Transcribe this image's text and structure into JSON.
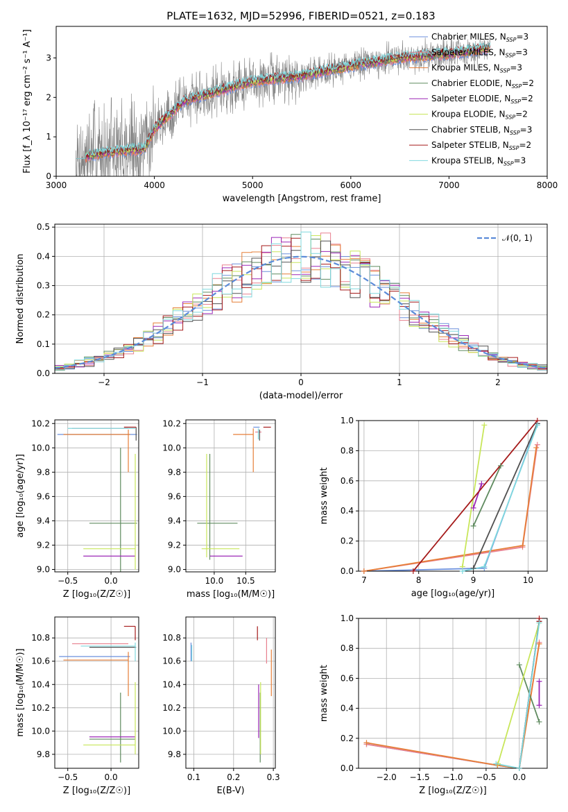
{
  "figure_title": "PLATE=1632, MJD=52996, FIBERID=0521, z=0.183",
  "colors": {
    "Chabrier MILES": "#6b8fdc",
    "Salpeter MILES": "#e8808f",
    "Kroupa MILES": "#e67e37",
    "Chabrier ELODIE": "#5e8a5e",
    "Salpeter ELODIE": "#9b26b6",
    "Kroupa ELODIE": "#c8e65a",
    "Chabrier STELIB": "#505050",
    "Salpeter STELIB": "#a51a1a",
    "Kroupa STELIB": "#7fd8de",
    "data": "#808080",
    "gaussian": "#5b8bd8"
  },
  "chart_data": [
    {
      "id": "spectrum",
      "type": "line",
      "title": "PLATE=1632, MJD=52996, FIBERID=0521, z=0.183",
      "xlabel": "wavelength [Angstrom, rest frame]",
      "ylabel": "Flux [f_λ 10⁻¹⁷ erg cm⁻² s⁻¹ A⁻¹]",
      "xlim": [
        3000,
        8000
      ],
      "ylim": [
        0,
        3.8
      ],
      "xticks": [
        "3000",
        "4000",
        "5000",
        "6000",
        "7000",
        "8000"
      ],
      "yticks": [
        "0",
        "1",
        "2",
        "3"
      ],
      "grid": false,
      "legend_position": "top-right",
      "legend": [
        {
          "label": "Chabrier MILES, ",
          "sub": "SSP",
          "count": "=3"
        },
        {
          "label": "Salpeter MILES, ",
          "sub": "SSP",
          "count": "=3"
        },
        {
          "label": "Kroupa MILES, ",
          "sub": "SSP",
          "count": "=3"
        },
        {
          "label": "Chabrier ELODIE, ",
          "sub": "SSP",
          "count": "=2"
        },
        {
          "label": "Salpeter ELODIE, ",
          "sub": "SSP",
          "count": "=2"
        },
        {
          "label": "Kroupa ELODIE, ",
          "sub": "SSP",
          "count": "=2"
        },
        {
          "label": "Chabrier STELIB, ",
          "sub": "SSP",
          "count": "=3"
        },
        {
          "label": "Salpeter STELIB, ",
          "sub": "SSP",
          "count": "=2"
        },
        {
          "label": "Kroupa STELIB, ",
          "sub": "SSP",
          "count": "=3"
        }
      ],
      "continuum_points": [
        [
          3200,
          0.45
        ],
        [
          3500,
          0.6
        ],
        [
          3900,
          0.7
        ],
        [
          4000,
          1.2
        ],
        [
          4300,
          1.9
        ],
        [
          4700,
          2.2
        ],
        [
          5000,
          2.4
        ],
        [
          5500,
          2.55
        ],
        [
          6000,
          2.8
        ],
        [
          6500,
          3.0
        ],
        [
          7000,
          3.1
        ],
        [
          7400,
          3.25
        ],
        [
          7800,
          3.3
        ]
      ]
    },
    {
      "id": "residuals",
      "type": "histogram",
      "xlabel": "(data-model)/error",
      "ylabel": "Normed distribution",
      "xlim": [
        -2.5,
        2.5
      ],
      "ylim": [
        0,
        0.51
      ],
      "xticks": [
        "-2",
        "-1",
        "0",
        "1",
        "2"
      ],
      "yticks": [
        "0.0",
        "0.1",
        "0.2",
        "0.3",
        "0.4",
        "0.5"
      ],
      "grid": true,
      "legend_position": "top-right",
      "gaussian_label": "𝒩(0, 1)",
      "bin_width": 0.1,
      "bin_start": -2.5
    },
    {
      "id": "age-vs-Z",
      "type": "errorbar",
      "xlabel": "Z [log₁₀(Z/Z☉)]",
      "ylabel": "age  [log₁₀(age/yr)]",
      "xlim": [
        -0.65,
        0.32
      ],
      "ylim": [
        8.98,
        10.23
      ],
      "xticks": [
        "-0.5",
        "0.0"
      ],
      "yticks": [
        "9.0",
        "9.2",
        "9.4",
        "9.6",
        "9.8",
        "10.0",
        "10.2"
      ],
      "grid": true,
      "points": [
        {
          "model": "Chabrier MILES",
          "x": [
            -0.62,
            0.3
          ],
          "y": [
            10.11,
            10.11
          ]
        },
        {
          "model": "Salpeter MILES",
          "x": [
            -0.45,
            0.2
          ],
          "y": [
            10.16,
            10.16
          ]
        },
        {
          "model": "Kroupa MILES",
          "x": [
            -0.55,
            0.22
          ],
          "y": [
            10.11,
            10.11
          ]
        },
        {
          "model": "Kroupa MILES",
          "x": [
            0.2,
            0.2
          ],
          "y": [
            9.8,
            10.15
          ]
        },
        {
          "model": "Chabrier ELODIE",
          "x": [
            -0.25,
            0.3
          ],
          "y": [
            9.38,
            9.38
          ]
        },
        {
          "model": "Chabrier ELODIE",
          "x": [
            0.11,
            0.11
          ],
          "y": [
            8.98,
            10.0
          ]
        },
        {
          "model": "Salpeter ELODIE",
          "x": [
            -0.32,
            0.28
          ],
          "y": [
            9.11,
            9.11
          ]
        },
        {
          "model": "Kroupa ELODIE",
          "x": [
            -0.32,
            0.28
          ],
          "y": [
            9.17,
            9.17
          ]
        },
        {
          "model": "Kroupa ELODIE",
          "x": [
            0.28,
            0.28
          ],
          "y": [
            9.0,
            9.95
          ]
        },
        {
          "model": "Chabrier STELIB",
          "x": [
            0.29,
            0.29
          ],
          "y": [
            10.06,
            10.17
          ]
        },
        {
          "model": "Salpeter STELIB",
          "x": [
            0.15,
            0.29
          ],
          "y": [
            10.17,
            10.17
          ]
        },
        {
          "model": "Kroupa STELIB",
          "x": [
            -0.5,
            0.28
          ],
          "y": [
            10.16,
            10.16
          ]
        }
      ]
    },
    {
      "id": "age-vs-mass",
      "type": "errorbar",
      "xlabel": "mass [log₁₀(M/M☉)]",
      "xlim": [
        9.55,
        10.97
      ],
      "ylim": [
        8.98,
        10.23
      ],
      "xticks": [
        "10.0",
        "10.5"
      ],
      "yticks": [
        "9.0",
        "9.2",
        "9.4",
        "9.6",
        "9.8",
        "10.0",
        "10.2"
      ],
      "grid": true,
      "points": [
        {
          "model": "Chabrier MILES",
          "x": [
            10.62,
            10.72
          ],
          "y": [
            10.17,
            10.17
          ]
        },
        {
          "model": "Salpeter MILES",
          "x": [
            10.65,
            10.75
          ],
          "y": [
            10.13,
            10.13
          ]
        },
        {
          "model": "Kroupa MILES",
          "x": [
            10.3,
            10.62
          ],
          "y": [
            10.11,
            10.11
          ]
        },
        {
          "model": "Kroupa MILES",
          "x": [
            10.62,
            10.62
          ],
          "y": [
            9.8,
            10.16
          ]
        },
        {
          "model": "Chabrier ELODIE",
          "x": [
            9.73,
            10.37
          ],
          "y": [
            9.38,
            9.38
          ]
        },
        {
          "model": "Chabrier ELODIE",
          "x": [
            9.93,
            9.93
          ],
          "y": [
            9.08,
            9.95
          ]
        },
        {
          "model": "Salpeter ELODIE",
          "x": [
            9.93,
            10.45
          ],
          "y": [
            9.11,
            9.11
          ]
        },
        {
          "model": "Kroupa ELODIE",
          "x": [
            9.8,
            10.4
          ],
          "y": [
            9.17,
            9.17
          ]
        },
        {
          "model": "Kroupa ELODIE",
          "x": [
            9.88,
            9.88
          ],
          "y": [
            9.1,
            9.95
          ]
        },
        {
          "model": "Chabrier STELIB",
          "x": [
            10.72,
            10.72
          ],
          "y": [
            10.06,
            10.15
          ]
        },
        {
          "model": "Salpeter STELIB",
          "x": [
            10.78,
            10.9
          ],
          "y": [
            10.17,
            10.17
          ]
        },
        {
          "model": "Kroupa STELIB",
          "x": [
            10.7,
            10.7
          ],
          "y": [
            10.07,
            10.16
          ]
        }
      ]
    },
    {
      "id": "mass-weight-vs-age",
      "type": "line",
      "xlabel": "age  [log₁₀(age/yr)]",
      "ylabel": "mass weight",
      "xlim": [
        6.9,
        10.35
      ],
      "ylim": [
        0,
        1.0
      ],
      "xticks": [
        "7",
        "8",
        "9",
        "10"
      ],
      "yticks": [
        "0.0",
        "0.2",
        "0.4",
        "0.6",
        "0.8",
        "1.0"
      ],
      "grid": true,
      "series": [
        {
          "model": "Chabrier MILES",
          "x": [
            7.0,
            9.2,
            10.17
          ],
          "y": [
            0.0,
            0.02,
            0.98
          ]
        },
        {
          "model": "Salpeter MILES",
          "x": [
            7.0,
            9.9,
            10.17
          ],
          "y": [
            0.0,
            0.16,
            0.84
          ]
        },
        {
          "model": "Kroupa MILES",
          "x": [
            7.0,
            9.9,
            10.15
          ],
          "y": [
            0.0,
            0.17,
            0.82
          ]
        },
        {
          "model": "Chabrier ELODIE",
          "x": [
            9.0,
            9.5
          ],
          "y": [
            0.3,
            0.7
          ]
        },
        {
          "model": "Salpeter ELODIE",
          "x": [
            9.0,
            9.15
          ],
          "y": [
            0.42,
            0.58
          ]
        },
        {
          "model": "Kroupa ELODIE",
          "x": [
            8.8,
            9.2
          ],
          "y": [
            0.03,
            0.97
          ]
        },
        {
          "model": "Chabrier STELIB",
          "x": [
            9.0,
            10.17
          ],
          "y": [
            0.02,
            0.98
          ]
        },
        {
          "model": "Salpeter STELIB",
          "x": [
            7.9,
            10.17
          ],
          "y": [
            0.0,
            1.0
          ]
        },
        {
          "model": "Kroupa STELIB",
          "x": [
            8.8,
            9.2,
            10.17
          ],
          "y": [
            0.0,
            0.03,
            0.97
          ]
        }
      ]
    },
    {
      "id": "mass-vs-Z",
      "type": "errorbar",
      "xlabel": "Z [log₁₀(Z/Z☉)]",
      "ylabel": "mass [log₁₀(M/M☉)]",
      "xlim": [
        -0.65,
        0.32
      ],
      "ylim": [
        9.68,
        10.98
      ],
      "xticks": [
        "-0.5",
        "0.0"
      ],
      "yticks": [
        "9.8",
        "10.0",
        "10.2",
        "10.4",
        "10.6",
        "10.8"
      ],
      "grid": true,
      "points": [
        {
          "model": "Chabrier MILES",
          "x": [
            -0.6,
            0.22
          ],
          "y": [
            10.64,
            10.64
          ]
        },
        {
          "model": "Salpeter MILES",
          "x": [
            -0.45,
            0.2
          ],
          "y": [
            10.75,
            10.75
          ]
        },
        {
          "model": "Kroupa MILES",
          "x": [
            -0.55,
            0.2
          ],
          "y": [
            10.61,
            10.61
          ]
        },
        {
          "model": "Kroupa MILES",
          "x": [
            0.2,
            0.2
          ],
          "y": [
            10.3,
            10.68
          ]
        },
        {
          "model": "Chabrier ELODIE",
          "x": [
            0.11,
            0.11
          ],
          "y": [
            9.73,
            10.33
          ]
        },
        {
          "model": "Chabrier ELODIE",
          "x": [
            -0.25,
            0.28
          ],
          "y": [
            9.93,
            9.93
          ]
        },
        {
          "model": "Salpeter ELODIE",
          "x": [
            -0.25,
            0.28
          ],
          "y": [
            9.95,
            9.95
          ]
        },
        {
          "model": "Kroupa ELODIE",
          "x": [
            -0.32,
            0.28
          ],
          "y": [
            9.88,
            9.88
          ]
        },
        {
          "model": "Kroupa ELODIE",
          "x": [
            0.28,
            0.28
          ],
          "y": [
            9.8,
            10.42
          ]
        },
        {
          "model": "Chabrier STELIB",
          "x": [
            -0.25,
            0.29
          ],
          "y": [
            10.72,
            10.72
          ]
        },
        {
          "model": "Salpeter STELIB",
          "x": [
            0.15,
            0.28
          ],
          "y": [
            10.9,
            10.9
          ]
        },
        {
          "model": "Salpeter STELIB",
          "x": [
            0.28,
            0.28
          ],
          "y": [
            10.78,
            10.9
          ]
        },
        {
          "model": "Kroupa STELIB",
          "x": [
            -0.35,
            0.28
          ],
          "y": [
            10.73,
            10.73
          ]
        },
        {
          "model": "Kroupa STELIB",
          "x": [
            0.28,
            0.28
          ],
          "y": [
            10.6,
            10.76
          ]
        }
      ]
    },
    {
      "id": "mass-vs-EBV",
      "type": "errorbar",
      "xlabel": "E(B-V)",
      "xlim": [
        0.08,
        0.305
      ],
      "ylim": [
        9.68,
        10.98
      ],
      "xticks": [
        "0.1",
        "0.2",
        "0.3"
      ],
      "yticks": [
        "9.8",
        "10.0",
        "10.2",
        "10.4",
        "10.6",
        "10.8"
      ],
      "grid": true,
      "points": [
        {
          "model": "Chabrier MILES",
          "x": [
            0.093,
            0.093
          ],
          "y": [
            10.6,
            10.76
          ]
        },
        {
          "model": "Kroupa STELIB",
          "x": [
            0.095,
            0.095
          ],
          "y": [
            10.6,
            10.74
          ]
        },
        {
          "model": "Salpeter STELIB",
          "x": [
            0.26,
            0.26
          ],
          "y": [
            10.78,
            10.9
          ]
        },
        {
          "model": "Salpeter ELODIE",
          "x": [
            0.263,
            0.263
          ],
          "y": [
            9.94,
            10.4
          ]
        },
        {
          "model": "Chabrier ELODIE",
          "x": [
            0.267,
            0.267
          ],
          "y": [
            9.73,
            10.33
          ]
        },
        {
          "model": "Kroupa ELODIE",
          "x": [
            0.268,
            0.268
          ],
          "y": [
            9.8,
            10.42
          ]
        },
        {
          "model": "Salpeter MILES",
          "x": [
            0.283,
            0.283
          ],
          "y": [
            10.58,
            10.8
          ]
        },
        {
          "model": "Kroupa MILES",
          "x": [
            0.295,
            0.295
          ],
          "y": [
            10.3,
            10.7
          ]
        }
      ]
    },
    {
      "id": "mass-weight-vs-Z",
      "type": "line",
      "xlabel": "Z [log₁₀(Z/Z☉)]",
      "ylabel": "mass weight",
      "xlim": [
        -2.42,
        0.42
      ],
      "ylim": [
        0,
        1.0
      ],
      "xticks": [
        "-2.0",
        "-1.5",
        "-1.0",
        "-0.5",
        "0.0"
      ],
      "yticks": [
        "0.0",
        "0.2",
        "0.4",
        "0.6",
        "0.8",
        "1.0"
      ],
      "grid": true,
      "series": [
        {
          "model": "Chabrier MILES",
          "x": [
            -2.3,
            -0.33,
            0.0,
            0.3
          ],
          "y": [
            0.16,
            0.02,
            0.0,
            0.98
          ]
        },
        {
          "model": "Salpeter MILES",
          "x": [
            -2.3,
            -0.33,
            0.0,
            0.3
          ],
          "y": [
            0.16,
            0.02,
            0.0,
            0.84
          ]
        },
        {
          "model": "Kroupa MILES",
          "x": [
            -2.3,
            -0.33,
            0.0,
            0.3
          ],
          "y": [
            0.17,
            0.02,
            0.0,
            0.83
          ]
        },
        {
          "model": "Chabrier ELODIE",
          "x": [
            0.0,
            0.3
          ],
          "y": [
            0.69,
            0.31
          ]
        },
        {
          "model": "Salpeter ELODIE",
          "x": [
            0.3,
            0.3
          ],
          "y": [
            0.42,
            0.58
          ]
        },
        {
          "model": "Kroupa ELODIE",
          "x": [
            -0.32,
            0.3
          ],
          "y": [
            0.03,
            0.97
          ]
        },
        {
          "model": "Chabrier STELIB",
          "x": [
            0.0,
            0.3
          ],
          "y": [
            0.0,
            0.98
          ]
        },
        {
          "model": "Salpeter STELIB",
          "x": [
            0.3,
            0.3
          ],
          "y": [
            0.98,
            1.0
          ]
        },
        {
          "model": "Kroupa STELIB",
          "x": [
            -0.35,
            0.0,
            0.3
          ],
          "y": [
            0.03,
            0.0,
            0.97
          ]
        }
      ]
    }
  ]
}
